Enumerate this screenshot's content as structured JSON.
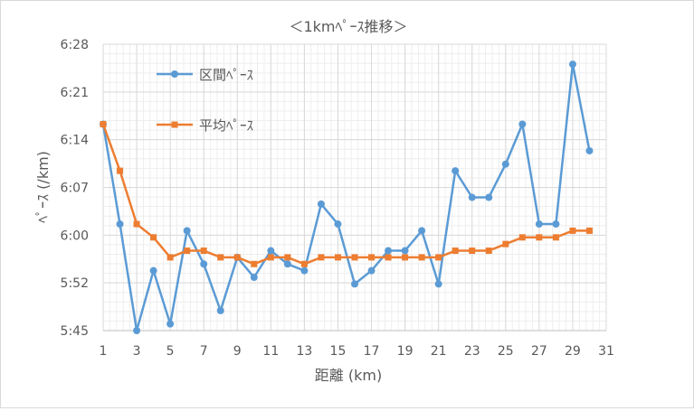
{
  "chart_data": {
    "type": "line",
    "title": "＜1kmﾍﾟｰｽ推移＞",
    "xlabel": "距離 (km)",
    "ylabel": "ﾍﾟｰｽ (/km)",
    "xlim": [
      1,
      31
    ],
    "ylim": [
      "5:45",
      "6:28"
    ],
    "x_ticks": [
      "1",
      "3",
      "5",
      "7",
      "9",
      "11",
      "13",
      "15",
      "17",
      "19",
      "21",
      "23",
      "25",
      "27",
      "29",
      "31"
    ],
    "y_ticks": [
      "5:45",
      "5:52",
      "6:00",
      "6:07",
      "6:14",
      "6:21",
      "6:28"
    ],
    "grid": "major and minor",
    "legend_position": "top-left (inside)",
    "x": [
      1,
      2,
      3,
      4,
      5,
      6,
      7,
      8,
      9,
      10,
      11,
      12,
      13,
      14,
      15,
      16,
      17,
      18,
      19,
      20,
      21,
      22,
      23,
      24,
      25,
      26,
      27,
      28,
      29,
      30
    ],
    "series": [
      {
        "name": "区間ﾍﾟｰｽ",
        "color": "#5b9bd5",
        "marker": "circle",
        "values": [
          "6:16",
          "6:01",
          "5:45",
          "5:54",
          "5:46",
          "6:00",
          "5:55",
          "5:48",
          "5:56",
          "5:53",
          "5:57",
          "5:55",
          "5:54",
          "6:04",
          "6:01",
          "5:52",
          "5:54",
          "5:57",
          "5:57",
          "6:00",
          "5:52",
          "6:09",
          "6:05",
          "6:05",
          "6:10",
          "6:16",
          "6:01",
          "6:01",
          "6:25",
          "6:12"
        ]
      },
      {
        "name": "平均ﾍﾟｰｽ",
        "color": "#ed7d31",
        "marker": "square",
        "values": [
          "6:16",
          "6:09",
          "6:01",
          "5:59",
          "5:56",
          "5:57",
          "5:57",
          "5:56",
          "5:56",
          "5:55",
          "5:56",
          "5:56",
          "5:55",
          "5:56",
          "5:56",
          "5:56",
          "5:56",
          "5:56",
          "5:56",
          "5:56",
          "5:56",
          "5:57",
          "5:57",
          "5:57",
          "5:58",
          "5:59",
          "5:59",
          "5:59",
          "6:00",
          "6:00"
        ]
      }
    ]
  }
}
